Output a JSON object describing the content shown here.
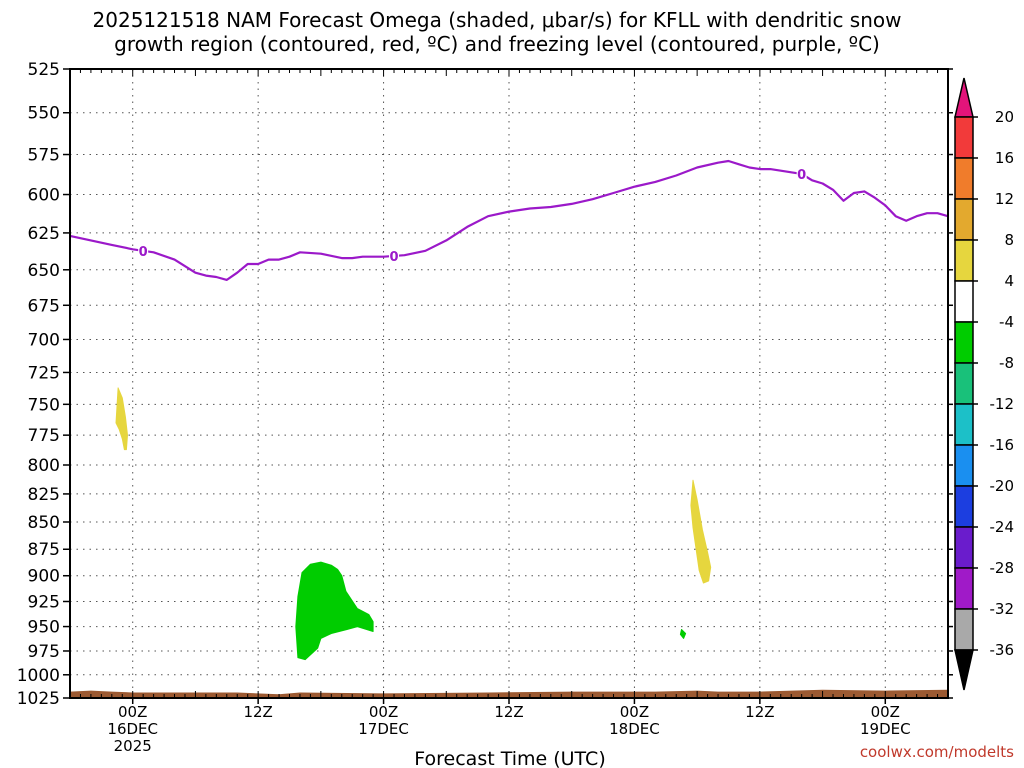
{
  "chart_data": {
    "type": "heatmap",
    "title_lines": [
      "2025121518 NAM Forecast Omega (shaded, μbar/s) for KFLL with dendritic snow",
      "growth region (contoured, red, ºC) and freezing level (contoured, purple, ºC)"
    ],
    "xlabel": "Forecast Time (UTC)",
    "ylabel": "",
    "y_axis": {
      "unit": "hPa",
      "ylim": [
        1025,
        525
      ],
      "ticks": [
        525,
        550,
        575,
        600,
        625,
        650,
        675,
        700,
        725,
        750,
        775,
        800,
        825,
        850,
        875,
        900,
        925,
        950,
        975,
        1000,
        1025
      ]
    },
    "x_axis": {
      "unit": "hours since 2025121518",
      "xlim": [
        0,
        84
      ],
      "ticks": [
        {
          "hour": 6,
          "lines": [
            "00Z",
            "16DEC",
            "2025"
          ]
        },
        {
          "hour": 18,
          "lines": [
            "12Z"
          ]
        },
        {
          "hour": 30,
          "lines": [
            "00Z",
            "17DEC"
          ]
        },
        {
          "hour": 42,
          "lines": [
            "12Z"
          ]
        },
        {
          "hour": 54,
          "lines": [
            "00Z",
            "18DEC"
          ]
        },
        {
          "hour": 66,
          "lines": [
            "12Z"
          ]
        },
        {
          "hour": 78,
          "lines": [
            "00Z",
            "19DEC"
          ]
        }
      ]
    },
    "colorbar": {
      "label_values": [
        20,
        16,
        12,
        8,
        4,
        -4,
        -8,
        -12,
        -16,
        -20,
        -24,
        -28,
        -32,
        -36
      ],
      "band_colors": [
        "#f23a3a",
        "#f07c2b",
        "#e3a92e",
        "#e6d63e",
        "#ffffff",
        "#00cc00",
        "#19c17a",
        "#1cc0c8",
        "#1a8ff0",
        "#1c3ee0",
        "#6a1ccc",
        "#a01ac8",
        "#a9a9a9"
      ],
      "top_arrow_color": "#e3147a",
      "bottom_arrow_color": "#000000"
    },
    "freezing_level": {
      "name": "0ºC freezing level",
      "color": "#9b19c9",
      "contour_label": "0",
      "label_hours": [
        7,
        31,
        70
      ],
      "hours": [
        0,
        2,
        4,
        6,
        8,
        10,
        12,
        13,
        14,
        15,
        16,
        17,
        18,
        19,
        20,
        21,
        22,
        24,
        26,
        27,
        28,
        29,
        30,
        32,
        34,
        36,
        38,
        40,
        42,
        44,
        46,
        48,
        50,
        52,
        54,
        56,
        58,
        60,
        62,
        63,
        64,
        65,
        66,
        67,
        68,
        69,
        70,
        71,
        72,
        73,
        74,
        75,
        76,
        77,
        78,
        79,
        80,
        81,
        82,
        83,
        84
      ],
      "pressure": [
        627,
        630,
        633,
        636,
        638,
        643,
        652,
        654,
        655,
        657,
        652,
        646,
        646,
        643,
        643,
        641,
        638,
        639,
        642,
        642,
        641,
        641,
        641,
        640,
        637,
        630,
        621,
        614,
        611,
        609,
        608,
        606,
        603,
        599,
        595,
        592,
        588,
        583,
        580,
        579,
        581,
        583,
        584,
        584,
        585,
        586,
        587,
        591,
        593,
        597,
        604,
        599,
        598,
        602,
        607,
        614,
        617,
        614,
        612,
        612,
        614
      ]
    },
    "omega_regions": [
      {
        "name": "yellow-patch-16dec",
        "value_band": "4 to 8",
        "color": "#e6d63e",
        "hours": [
          4.6,
          5.0,
          5.3,
          5.5,
          5.4,
          5.2,
          5.0,
          4.7,
          4.4
        ],
        "pressure": [
          737,
          745,
          760,
          775,
          787,
          787,
          778,
          770,
          765
        ]
      },
      {
        "name": "green-patch-17dec",
        "value_band": "-4 to -8",
        "color": "#00cc00",
        "hours": [
          22.2,
          23.0,
          24.0,
          25.0,
          25.6,
          26.0,
          26.4,
          27.5,
          28.6,
          29.0,
          29.0,
          27.5,
          26.5,
          25.0,
          24.0,
          23.7,
          22.5,
          21.8,
          21.6,
          21.8
        ],
        "pressure": [
          897,
          889,
          887,
          890,
          894,
          900,
          915,
          932,
          938,
          945,
          955,
          950,
          953,
          957,
          962,
          972,
          984,
          982,
          950,
          920
        ]
      },
      {
        "name": "yellow-patch-18dec",
        "value_band": "4 to 8",
        "color": "#e6d63e",
        "hours": [
          59.6,
          60.0,
          60.5,
          61.0,
          61.3,
          61.1,
          60.6,
          60.2,
          59.9,
          59.6,
          59.4
        ],
        "pressure": [
          813,
          830,
          857,
          878,
          892,
          905,
          907,
          895,
          875,
          855,
          835
        ]
      },
      {
        "name": "green-dot-18dec",
        "value_band": "-4 to -8",
        "color": "#00cc00",
        "hours": [
          58.5,
          58.9,
          58.7,
          58.4
        ],
        "pressure": [
          953,
          957,
          962,
          958
        ]
      }
    ],
    "terrain": {
      "color": "#9c5a32",
      "hours": [
        0,
        2,
        4,
        6,
        10,
        16,
        20,
        21,
        22,
        30,
        40,
        48,
        56,
        60,
        62,
        66,
        72,
        78,
        84
      ],
      "pressure": [
        1018,
        1017,
        1018,
        1019,
        1019,
        1019,
        1021,
        1020,
        1019,
        1020,
        1019,
        1018,
        1018,
        1017,
        1018,
        1018,
        1016,
        1017,
        1016
      ]
    }
  },
  "credit": "coolwx.com/modelts"
}
